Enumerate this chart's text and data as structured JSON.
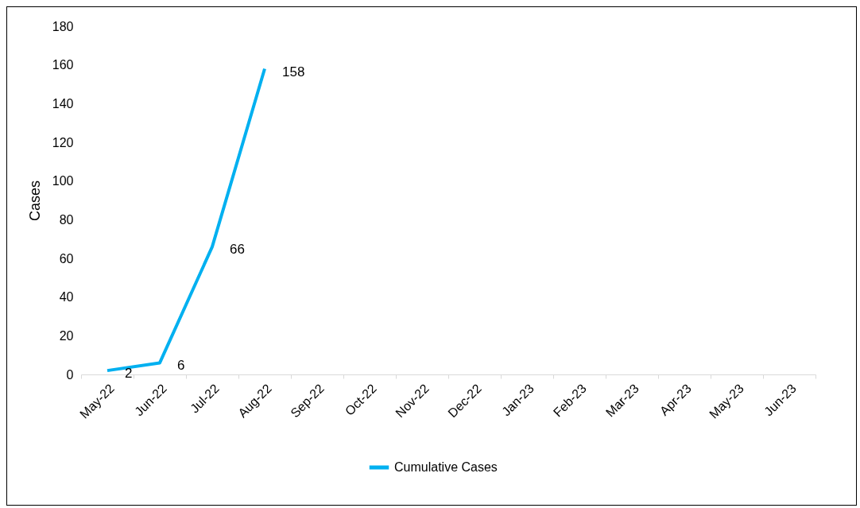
{
  "chart_data": {
    "type": "line",
    "ylabel": "Cases",
    "categories": [
      "May-22",
      "Jun-22",
      "Jul-22",
      "Aug-22",
      "Sep-22",
      "Oct-22",
      "Nov-22",
      "Dec-22",
      "Jan-23",
      "Feb-23",
      "Mar-23",
      "Apr-23",
      "May-23",
      "Jun-23"
    ],
    "series": [
      {
        "name": "Cumulative Cases",
        "color": "#00b0f0",
        "values": [
          2,
          6,
          66,
          158,
          null,
          null,
          null,
          null,
          null,
          null,
          null,
          null,
          null,
          null
        ]
      }
    ],
    "ylim": [
      0,
      180
    ],
    "yticks": [
      0,
      20,
      40,
      60,
      80,
      100,
      120,
      140,
      160,
      180
    ],
    "data_labels": true,
    "grid": false,
    "legend": "bottom",
    "marker": "none",
    "line_style": "solid"
  }
}
